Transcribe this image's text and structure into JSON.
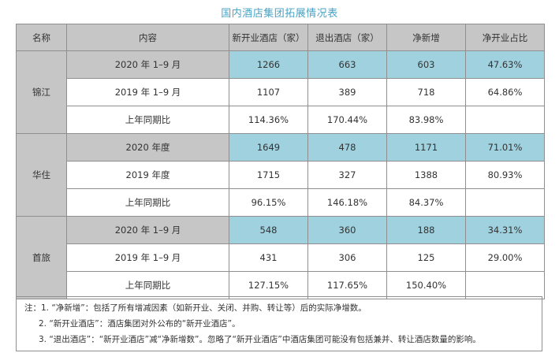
{
  "title": "国内酒店集团拓展情况表",
  "headers": [
    "名称",
    "内容",
    "新开业酒店（家）",
    "退出酒店（家）",
    "净新增",
    "净开业占比"
  ],
  "groups": [
    {
      "name": "锦江",
      "rows": [
        {
          "period": "2020 年 1–9 月",
          "new": "1266",
          "exit": "663",
          "net": "603",
          "ratio": "47.63%"
        },
        {
          "period": "2019 年 1–9 月",
          "new": "1107",
          "exit": "389",
          "net": "718",
          "ratio": "64.86%"
        },
        {
          "period": "上年同期比",
          "new": "114.36%",
          "exit": "170.44%",
          "net": "83.98%",
          "ratio": ""
        }
      ]
    },
    {
      "name": "华住",
      "rows": [
        {
          "period": "2020 年度",
          "new": "1649",
          "exit": "478",
          "net": "1171",
          "ratio": "71.01%"
        },
        {
          "period": "2019 年度",
          "new": "1715",
          "exit": "327",
          "net": "1388",
          "ratio": "80.93%"
        },
        {
          "period": "上年同期比",
          "new": "96.15%",
          "exit": "146.18%",
          "net": "84.37%",
          "ratio": ""
        }
      ]
    },
    {
      "name": "首旅",
      "rows": [
        {
          "period": "2020 年 1–9 月",
          "new": "548",
          "exit": "360",
          "net": "188",
          "ratio": "34.31%"
        },
        {
          "period": "2019 年 1–9 月",
          "new": "431",
          "exit": "306",
          "net": "125",
          "ratio": "29.00%"
        },
        {
          "period": "上年同期比",
          "new": "127.15%",
          "exit": "117.65%",
          "net": "150.40%",
          "ratio": ""
        }
      ]
    }
  ],
  "notes": [
    "注：1. “净新增”：包括了所有增减因素（如新开业、关闭、并购、转让等）后的实际净增数。",
    "2. “新开业酒店”：酒店集团对外公布的“新开业酒店”。",
    "3. “退出酒店”：“新开业酒店”减“净新增数”。忽略了“新开业酒店”中酒店集团可能没有包括兼并、转让酒店数量的影响。"
  ],
  "colors": {
    "header_bg": "#c6c6c6",
    "highlight_bg": "#9fd1df",
    "title": "#4aa3c4",
    "border": "#8f8f8f"
  }
}
